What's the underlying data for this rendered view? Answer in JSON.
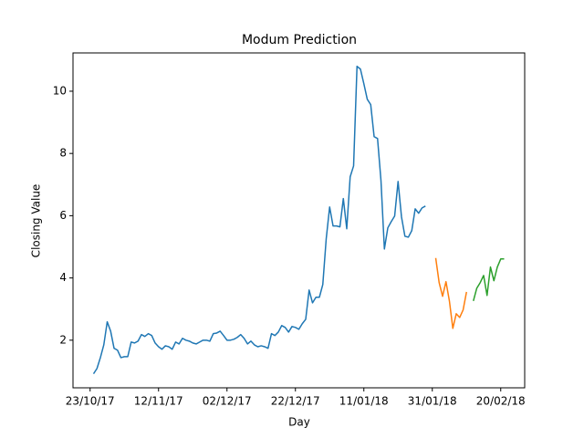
{
  "chart_data": {
    "type": "line",
    "title": "Modum Prediction",
    "x_label": "Day",
    "y_label": "Closing Value",
    "xlim": [
      "18/10/17",
      "27/02/18"
    ],
    "xticks": [
      "23/10/17",
      "12/11/17",
      "02/12/17",
      "22/12/17",
      "11/01/18",
      "31/01/18",
      "20/02/18"
    ],
    "ylim": [
      0.47,
      11.23
    ],
    "yticks": [
      2,
      4,
      6,
      8,
      10
    ],
    "series": [
      {
        "color": "#1f77b4",
        "x": [
          "24/10/17",
          "25/10/17",
          "26/10/17",
          "27/10/17",
          "28/10/17",
          "29/10/17",
          "30/10/17",
          "31/10/17",
          "01/11/17",
          "02/11/17",
          "03/11/17",
          "04/11/17",
          "05/11/17",
          "06/11/17",
          "07/11/17",
          "08/11/17",
          "09/11/17",
          "10/11/17",
          "11/11/17",
          "12/11/17",
          "13/11/17",
          "14/11/17",
          "15/11/17",
          "16/11/17",
          "17/11/17",
          "18/11/17",
          "19/11/17",
          "20/11/17",
          "21/11/17",
          "22/11/17",
          "23/11/17",
          "24/11/17",
          "25/11/17",
          "26/11/17",
          "27/11/17",
          "28/11/17",
          "29/11/17",
          "30/11/17",
          "01/12/17",
          "02/12/17",
          "03/12/17",
          "04/12/17",
          "05/12/17",
          "06/12/17",
          "07/12/17",
          "08/12/17",
          "09/12/17",
          "10/12/17",
          "11/12/17",
          "12/12/17",
          "13/12/17",
          "14/12/17",
          "15/12/17",
          "16/12/17",
          "17/12/17",
          "18/12/17",
          "19/12/17",
          "20/12/17",
          "21/12/17",
          "22/12/17",
          "23/12/17",
          "24/12/17",
          "25/12/17",
          "26/12/17",
          "27/12/17",
          "28/12/17",
          "29/12/17",
          "30/12/17",
          "31/12/17",
          "01/01/18",
          "02/01/18",
          "03/01/18",
          "04/01/18",
          "05/01/18",
          "06/01/18",
          "07/01/18",
          "08/01/18",
          "09/01/18",
          "10/01/18",
          "11/01/18",
          "12/01/18",
          "13/01/18",
          "14/01/18",
          "15/01/18",
          "16/01/18",
          "17/01/18",
          "18/01/18",
          "19/01/18",
          "20/01/18",
          "21/01/18",
          "22/01/18",
          "23/01/18",
          "24/01/18",
          "25/01/18",
          "26/01/18",
          "27/01/18",
          "28/01/18",
          "29/01/18"
        ],
        "values": [
          0.92,
          1.09,
          1.44,
          1.85,
          2.59,
          2.29,
          1.74,
          1.68,
          1.44,
          1.47,
          1.47,
          1.94,
          1.91,
          1.97,
          2.18,
          2.12,
          2.21,
          2.15,
          1.91,
          1.79,
          1.71,
          1.82,
          1.79,
          1.71,
          1.94,
          1.88,
          2.06,
          2.0,
          1.97,
          1.91,
          1.88,
          1.94,
          2.0,
          2.0,
          1.97,
          2.21,
          2.23,
          2.29,
          2.15,
          2.0,
          2.0,
          2.03,
          2.09,
          2.18,
          2.06,
          1.88,
          1.97,
          1.85,
          1.79,
          1.82,
          1.79,
          1.74,
          2.21,
          2.15,
          2.26,
          2.47,
          2.41,
          2.26,
          2.44,
          2.41,
          2.35,
          2.53,
          2.67,
          3.61,
          3.2,
          3.38,
          3.38,
          3.79,
          5.26,
          6.28,
          5.67,
          5.67,
          5.64,
          6.55,
          5.58,
          7.25,
          7.6,
          10.8,
          10.71,
          10.24,
          9.74,
          9.57,
          8.54,
          8.48,
          7.13,
          4.93,
          5.61,
          5.81,
          5.99,
          7.1,
          5.96,
          5.34,
          5.31,
          5.52,
          6.22,
          6.08,
          6.25,
          6.31
        ]
      },
      {
        "color": "#ff7f0e",
        "x": [
          "01/02/18",
          "02/02/18",
          "03/02/18",
          "04/02/18",
          "05/02/18",
          "06/02/18",
          "07/02/18",
          "08/02/18",
          "09/02/18",
          "10/02/18"
        ],
        "values": [
          4.64,
          3.85,
          3.41,
          3.88,
          3.26,
          2.38,
          2.85,
          2.73,
          2.97,
          3.55
        ]
      },
      {
        "color": "#2ca02c",
        "x": [
          "12/02/18",
          "13/02/18",
          "14/02/18",
          "15/02/18",
          "16/02/18",
          "17/02/18",
          "18/02/18",
          "19/02/18",
          "20/02/18",
          "21/02/18"
        ],
        "values": [
          3.26,
          3.67,
          3.85,
          4.08,
          3.44,
          4.35,
          3.91,
          4.35,
          4.61,
          4.61
        ]
      }
    ]
  }
}
